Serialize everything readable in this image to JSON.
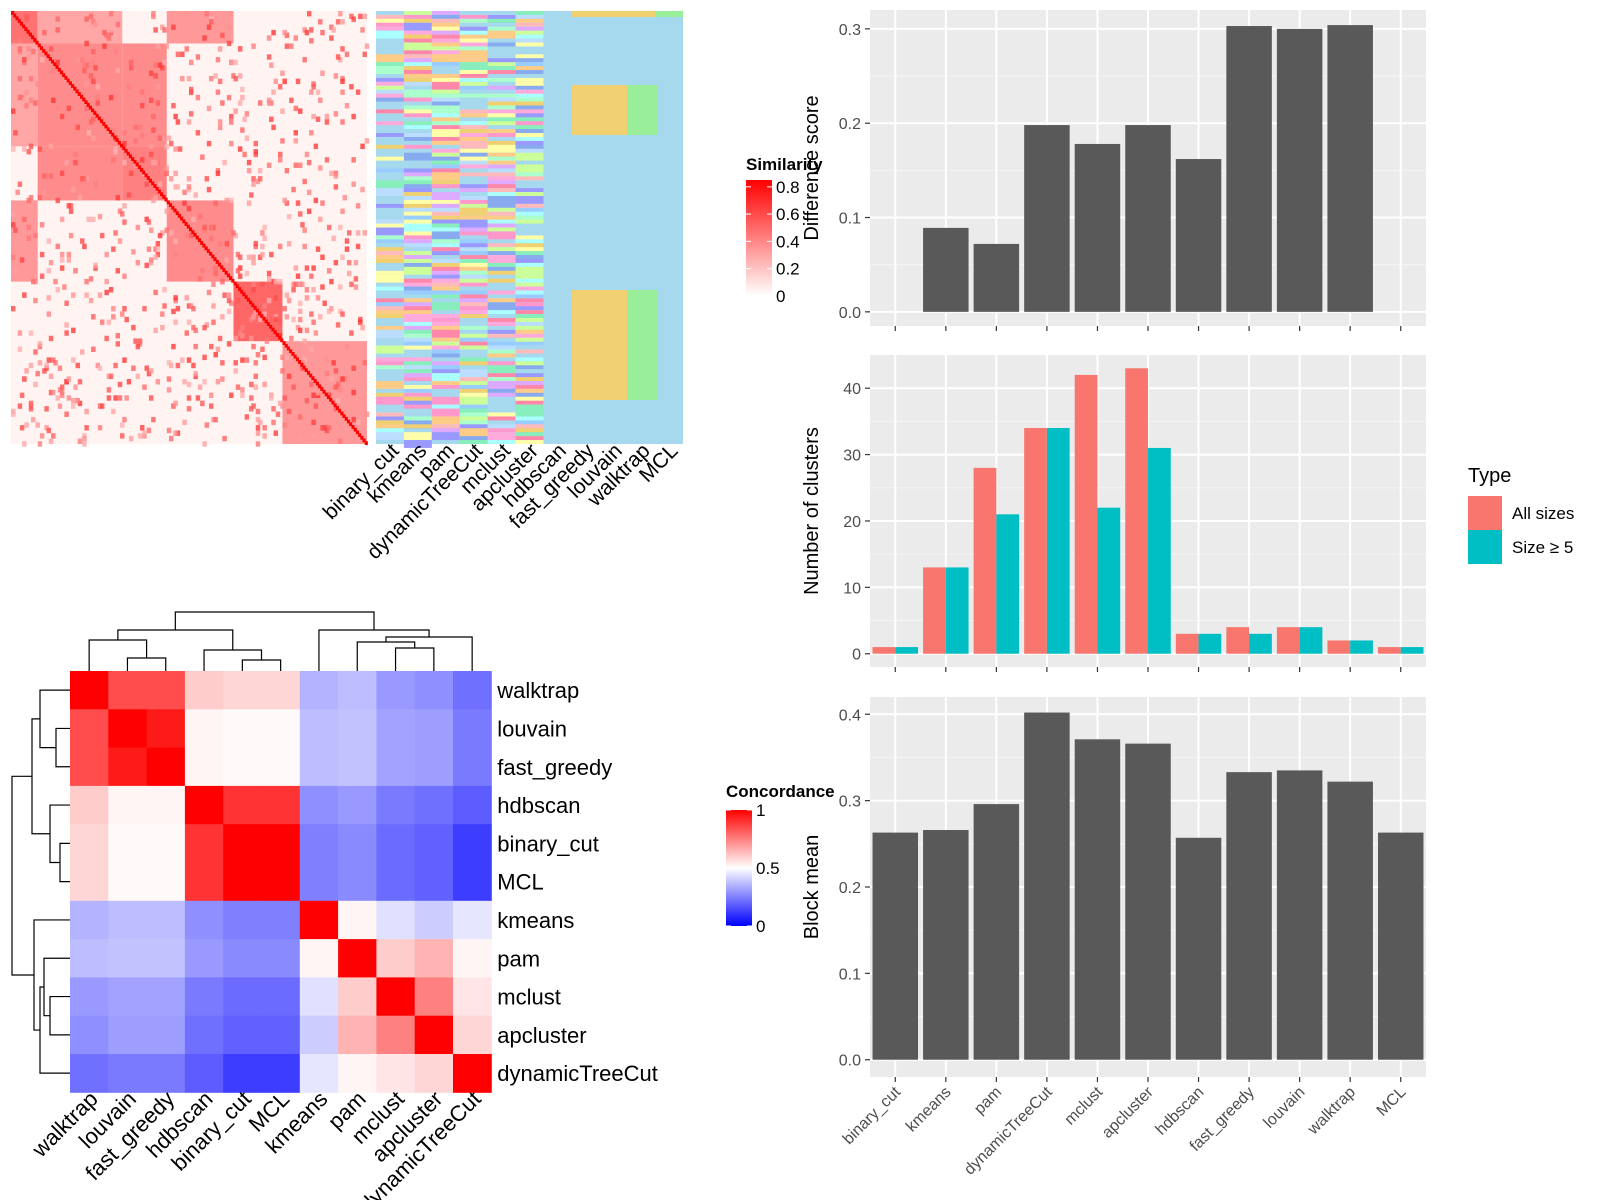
{
  "methods": [
    "binary_cut",
    "kmeans",
    "pam",
    "dynamicTreeCut",
    "mclust",
    "apcluster",
    "hdbscan",
    "fast_greedy",
    "louvain",
    "walktrap",
    "MCL"
  ],
  "colors": {
    "panel_bg": "#ebebeb",
    "grid": "#ffffff",
    "bar": "#595959",
    "all_sizes": "#f8766d",
    "size5": "#00bfc4",
    "matrix_bg": "#a6d9ee",
    "heat_low": "#ffffff",
    "heat_high": "#ff0000",
    "conc_low": "#0000ff",
    "conc_mid": "#ffffff",
    "conc_high": "#ff0000"
  },
  "similarity_legend": {
    "title": "Similarity",
    "ticks": [
      "0",
      "0.2",
      "0.4",
      "0.6",
      "0.8"
    ]
  },
  "concordance_legend": {
    "title": "Concordance",
    "ticks": [
      "0",
      "0.5",
      "1"
    ]
  },
  "concordance_order": [
    "walktrap",
    "louvain",
    "fast_greedy",
    "hdbscan",
    "binary_cut",
    "MCL",
    "kmeans",
    "pam",
    "mclust",
    "apcluster",
    "dynamicTreeCut"
  ],
  "concordance_matrix": [
    [
      1.0,
      0.85,
      0.85,
      0.6,
      0.58,
      0.58,
      0.35,
      0.37,
      0.3,
      0.28,
      0.22
    ],
    [
      0.85,
      1.0,
      0.95,
      0.52,
      0.51,
      0.51,
      0.37,
      0.38,
      0.32,
      0.31,
      0.24
    ],
    [
      0.85,
      0.95,
      1.0,
      0.52,
      0.51,
      0.51,
      0.37,
      0.38,
      0.32,
      0.31,
      0.24
    ],
    [
      0.6,
      0.52,
      0.52,
      1.0,
      0.9,
      0.9,
      0.28,
      0.3,
      0.24,
      0.22,
      0.18
    ],
    [
      0.58,
      0.51,
      0.51,
      0.9,
      1.0,
      1.0,
      0.25,
      0.27,
      0.21,
      0.19,
      0.12
    ],
    [
      0.58,
      0.51,
      0.51,
      0.9,
      1.0,
      1.0,
      0.25,
      0.27,
      0.21,
      0.19,
      0.12
    ],
    [
      0.35,
      0.37,
      0.37,
      0.28,
      0.25,
      0.25,
      1.0,
      0.52,
      0.44,
      0.4,
      0.45
    ],
    [
      0.37,
      0.38,
      0.38,
      0.3,
      0.27,
      0.27,
      0.52,
      1.0,
      0.6,
      0.65,
      0.52
    ],
    [
      0.3,
      0.32,
      0.32,
      0.24,
      0.21,
      0.21,
      0.44,
      0.6,
      1.0,
      0.75,
      0.55
    ],
    [
      0.28,
      0.31,
      0.31,
      0.22,
      0.19,
      0.19,
      0.4,
      0.65,
      0.75,
      1.0,
      0.58
    ],
    [
      0.22,
      0.24,
      0.24,
      0.18,
      0.12,
      0.12,
      0.45,
      0.52,
      0.55,
      0.58,
      1.0
    ]
  ],
  "chart_data": [
    {
      "type": "bar",
      "categories": [
        "binary_cut",
        "kmeans",
        "pam",
        "dynamicTreeCut",
        "mclust",
        "apcluster",
        "hdbscan",
        "fast_greedy",
        "louvain",
        "walktrap",
        "MCL"
      ],
      "values": [
        0,
        0.089,
        0.072,
        0.198,
        0.178,
        0.198,
        0.162,
        0.303,
        0.3,
        0.304,
        0
      ],
      "ylabel": "Difference score",
      "ylim": [
        -0.015,
        0.32
      ],
      "yticks": [
        "0.0",
        "0.1",
        "0.2",
        "0.3"
      ]
    },
    {
      "type": "bar",
      "categories": [
        "binary_cut",
        "kmeans",
        "pam",
        "dynamicTreeCut",
        "mclust",
        "apcluster",
        "hdbscan",
        "fast_greedy",
        "louvain",
        "walktrap",
        "MCL"
      ],
      "series": [
        {
          "name": "All sizes",
          "values": [
            1,
            13,
            28,
            34,
            42,
            43,
            3,
            4,
            4,
            2,
            1
          ]
        },
        {
          "name": "Size ≥ 5",
          "values": [
            1,
            13,
            21,
            34,
            22,
            31,
            3,
            3,
            4,
            2,
            1
          ]
        }
      ],
      "ylabel": "Number of clusters",
      "ylim": [
        -2,
        45
      ],
      "yticks": [
        "0",
        "10",
        "20",
        "30",
        "40"
      ],
      "legend": {
        "title": "Type",
        "position": "right"
      }
    },
    {
      "type": "bar",
      "categories": [
        "binary_cut",
        "kmeans",
        "pam",
        "dynamicTreeCut",
        "mclust",
        "apcluster",
        "hdbscan",
        "fast_greedy",
        "louvain",
        "walktrap",
        "MCL"
      ],
      "values": [
        0.263,
        0.266,
        0.296,
        0.402,
        0.371,
        0.366,
        0.257,
        0.333,
        0.335,
        0.322,
        0.263
      ],
      "ylabel": "Block mean",
      "ylim": [
        -0.02,
        0.42
      ],
      "yticks": [
        "0.0",
        "0.1",
        "0.2",
        "0.3",
        "0.4"
      ]
    }
  ]
}
